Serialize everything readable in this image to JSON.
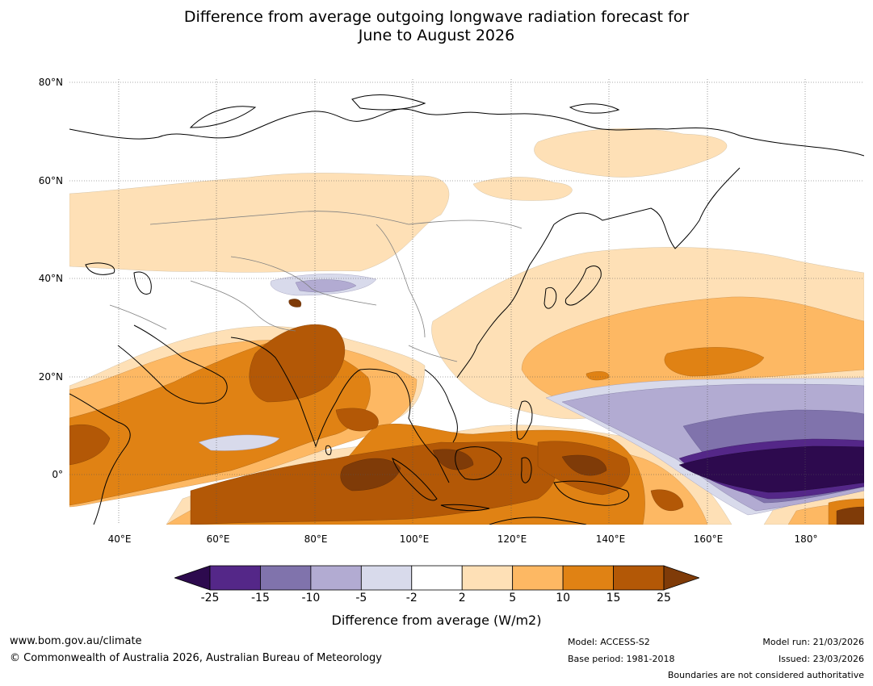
{
  "title_line1": "Difference from average outgoing longwave radiation forecast for",
  "title_line2": "June to August 2026",
  "map": {
    "projection": "Plate Carree",
    "extent": {
      "lon_min": 30,
      "lon_max": 192,
      "lat_min": -10,
      "lat_max": 81
    },
    "lat_labels": [
      "80°N",
      "60°N",
      "40°N",
      "20°N",
      "0°"
    ],
    "lon_labels": [
      "40°E",
      "60°E",
      "80°E",
      "100°E",
      "120°E",
      "140°E",
      "160°E",
      "180°"
    ]
  },
  "legend": {
    "bounds": [
      "-25",
      "-15",
      "-10",
      "-5",
      "-2",
      "2",
      "5",
      "10",
      "15",
      "25"
    ],
    "colors": [
      "#2d0a4e",
      "#542788",
      "#8073ac",
      "#b2abd2",
      "#d8daeb",
      "#ffffff",
      "#fee0b6",
      "#fdb863",
      "#e08214",
      "#b35806",
      "#7f3b08"
    ],
    "label": "Difference from average (W/m2)"
  },
  "footer": {
    "website": "www.bom.gov.au/climate",
    "copyright": "© Commonwealth of Australia 2026, Australian Bureau of Meteorology",
    "model": "Model: ACCESS-S2",
    "base_period": "Base period: 1981-2018",
    "model_run": "Model run: 21/03/2026",
    "issued": "Issued: 23/03/2026",
    "disclaimer": "Boundaries are not considered authoritative"
  }
}
